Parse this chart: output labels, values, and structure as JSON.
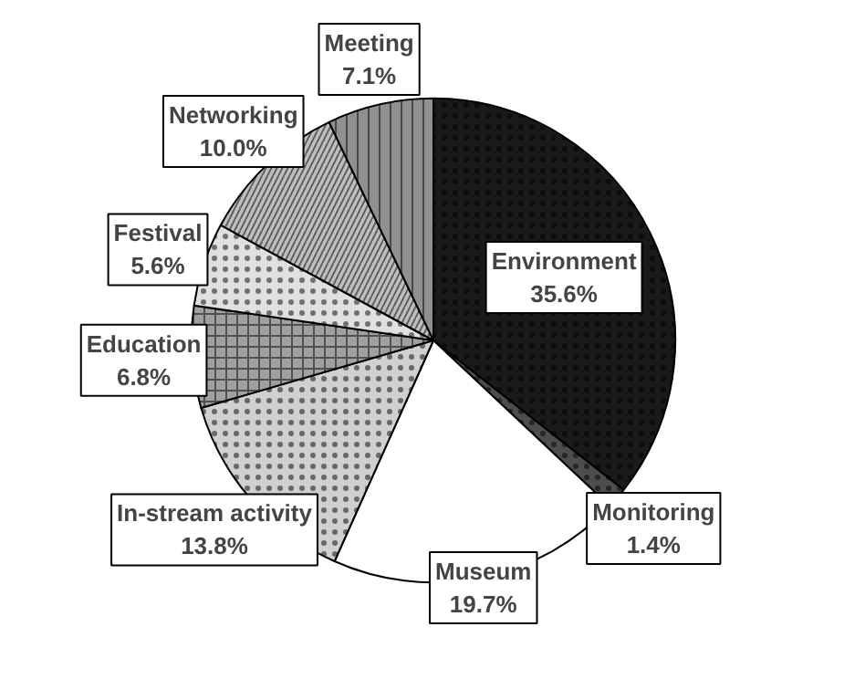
{
  "chart_data": {
    "type": "pie",
    "categories": [
      "Environment",
      "Monitoring",
      "Museum",
      "In-stream activity",
      "Education",
      "Festival",
      "Networking",
      "Meeting"
    ],
    "values": [
      35.6,
      1.4,
      19.7,
      13.8,
      6.8,
      5.6,
      10.0,
      7.1
    ],
    "value_labels": [
      "35.6%",
      "1.4%",
      "19.7%",
      "13.8%",
      "6.8%",
      "5.6%",
      "10.0%",
      "7.1%"
    ],
    "colors": [
      "#1a1a1a",
      "#4d4d4d",
      "#ffffff",
      "#d0d0d0",
      "#a0a0a0",
      "#e0e0e0",
      "#c0c0c0",
      "#909090"
    ]
  }
}
